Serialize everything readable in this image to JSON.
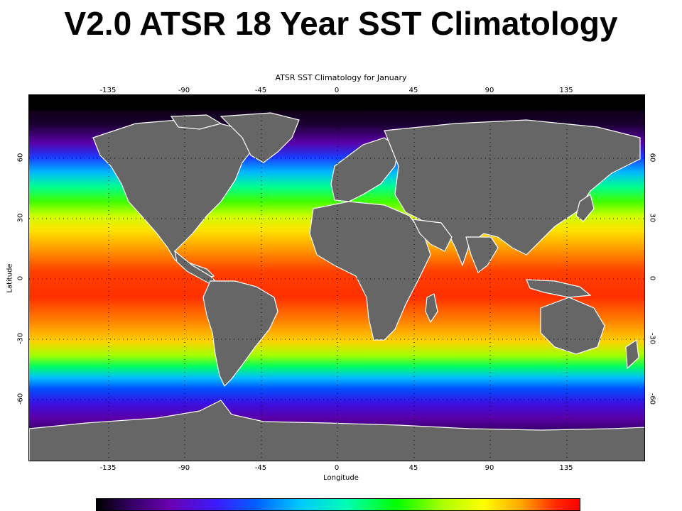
{
  "slide": {
    "title": "V2.0 ATSR 18 Year SST Climatology"
  },
  "map": {
    "title": "ATSR SST Climatology for January",
    "xlabel": "Longitude",
    "ylabel": "Latitude",
    "lon_ticks": [
      "-135",
      "-90",
      "-45",
      "0",
      "45",
      "90",
      "135"
    ],
    "lat_ticks": [
      "60",
      "30",
      "0",
      "-30",
      "-60"
    ],
    "land_color": "#666666",
    "coast_color": "#ffffff",
    "grid_color": "#000000"
  },
  "colorbar": {
    "palette": [
      "#000000",
      "#6a00b0",
      "#0060ff",
      "#00c8ff",
      "#00ff00",
      "#ffff00",
      "#ffa500",
      "#ff0000"
    ]
  }
}
